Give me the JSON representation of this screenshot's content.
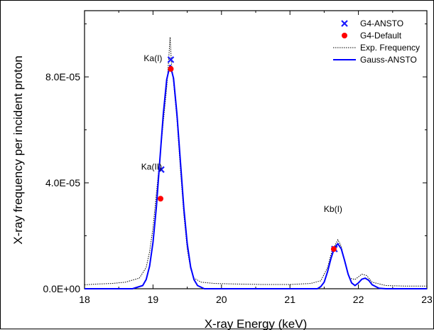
{
  "chart_data": {
    "type": "line",
    "title": "",
    "xlabel": "X-ray Energy (keV)",
    "ylabel": "X-ray frequency per incident proton",
    "xlim": [
      18,
      23
    ],
    "ylim": [
      0,
      0.000105
    ],
    "xticks": [
      18,
      19,
      20,
      21,
      22,
      23
    ],
    "xtick_labels": [
      "18",
      "19",
      "20",
      "21",
      "22",
      "23"
    ],
    "yticks": [
      0,
      4e-05,
      8e-05
    ],
    "ytick_labels": [
      "0.0E+00",
      "4.0E-05",
      "8.0E-05"
    ],
    "legend_position": "top-right",
    "annotations": [
      {
        "text": "Ka(I)",
        "x": 19.0,
        "y": 8.6e-05
      },
      {
        "text": "Ka(II)",
        "x": 18.98,
        "y": 4.5e-05
      },
      {
        "text": "Kb(I)",
        "x": 21.63,
        "y": 2.9e-05
      }
    ],
    "series": [
      {
        "name": "G4-ANSTO",
        "type": "scatter",
        "marker": "x",
        "color": "#1a1aff",
        "points": [
          [
            19.26,
            8.65e-05
          ],
          [
            19.12,
            4.5e-05
          ],
          [
            21.65,
            1.5e-05
          ]
        ]
      },
      {
        "name": "G4-Default",
        "type": "scatter",
        "marker": "circle",
        "color": "#ff0000",
        "points": [
          [
            19.26,
            8.3e-05
          ],
          [
            19.11,
            3.4e-05
          ],
          [
            21.64,
            1.5e-05
          ]
        ]
      },
      {
        "name": "Exp. Frequency",
        "type": "line",
        "style": "dotted",
        "color": "#000000",
        "points": [
          [
            18.0,
            1.5e-06
          ],
          [
            18.2,
            1.8e-06
          ],
          [
            18.4,
            2e-06
          ],
          [
            18.6,
            2.5e-06
          ],
          [
            18.8,
            4e-06
          ],
          [
            18.9,
            8e-06
          ],
          [
            18.95,
            1.4e-05
          ],
          [
            19.0,
            2.3e-05
          ],
          [
            19.05,
            3.6e-05
          ],
          [
            19.1,
            4.9e-05
          ],
          [
            19.15,
            6.3e-05
          ],
          [
            19.2,
            7.6e-05
          ],
          [
            19.22,
            8.3e-05
          ],
          [
            19.25,
            9.5e-05
          ],
          [
            19.27,
            8.5e-05
          ],
          [
            19.3,
            7.8e-05
          ],
          [
            19.35,
            6.4e-05
          ],
          [
            19.4,
            4.5e-05
          ],
          [
            19.45,
            2.8e-05
          ],
          [
            19.5,
            1.5e-05
          ],
          [
            19.55,
            7.5e-06
          ],
          [
            19.6,
            4e-06
          ],
          [
            19.7,
            2.5e-06
          ],
          [
            19.9,
            2e-06
          ],
          [
            20.2,
            1.8e-06
          ],
          [
            20.6,
            1.6e-06
          ],
          [
            21.0,
            1.6e-06
          ],
          [
            21.3,
            2e-06
          ],
          [
            21.45,
            3e-06
          ],
          [
            21.55,
            8e-06
          ],
          [
            21.6,
            1.3e-05
          ],
          [
            21.65,
            1.6e-05
          ],
          [
            21.7,
            1.85e-05
          ],
          [
            21.75,
            1.6e-05
          ],
          [
            21.8,
            1e-05
          ],
          [
            21.87,
            4e-06
          ],
          [
            21.95,
            3.5e-06
          ],
          [
            22.05,
            5.5e-06
          ],
          [
            22.12,
            5e-06
          ],
          [
            22.2,
            2.5e-06
          ],
          [
            22.4,
            1.2e-06
          ],
          [
            22.7,
            1e-06
          ],
          [
            23.0,
            1e-06
          ]
        ]
      },
      {
        "name": "Gauss-ANSTO",
        "type": "line",
        "style": "solid",
        "color": "#0000ff",
        "points": [
          [
            18.0,
            0.0
          ],
          [
            18.7,
            0.0
          ],
          [
            18.85,
            1.2e-06
          ],
          [
            18.9,
            3.5e-06
          ],
          [
            18.95,
            8.5e-06
          ],
          [
            19.0,
            1.75e-05
          ],
          [
            19.05,
            3.1e-05
          ],
          [
            19.1,
            4.85e-05
          ],
          [
            19.15,
            6.6e-05
          ],
          [
            19.2,
            7.9e-05
          ],
          [
            19.25,
            8.45e-05
          ],
          [
            19.3,
            7.95e-05
          ],
          [
            19.35,
            6.6e-05
          ],
          [
            19.4,
            4.8e-05
          ],
          [
            19.45,
            3.05e-05
          ],
          [
            19.5,
            1.7e-05
          ],
          [
            19.55,
            8.2e-06
          ],
          [
            19.6,
            3.4e-06
          ],
          [
            19.65,
            1.2e-06
          ],
          [
            19.75,
            0.0
          ],
          [
            21.4,
            0.0
          ],
          [
            21.45,
            8e-07
          ],
          [
            21.5,
            2.5e-06
          ],
          [
            21.55,
            6.5e-06
          ],
          [
            21.6,
            1.15e-05
          ],
          [
            21.65,
            1.55e-05
          ],
          [
            21.7,
            1.7e-05
          ],
          [
            21.75,
            1.5e-05
          ],
          [
            21.8,
            1.05e-05
          ],
          [
            21.85,
            5.5e-06
          ],
          [
            21.9,
            2.2e-06
          ],
          [
            21.95,
            1.2e-06
          ],
          [
            22.0,
            2.2e-06
          ],
          [
            22.05,
            3.6e-06
          ],
          [
            22.1,
            4e-06
          ],
          [
            22.15,
            3.2e-06
          ],
          [
            22.2,
            1.5e-06
          ],
          [
            22.3,
            2e-07
          ],
          [
            22.4,
            0.0
          ],
          [
            23.0,
            0.0
          ]
        ]
      }
    ]
  }
}
